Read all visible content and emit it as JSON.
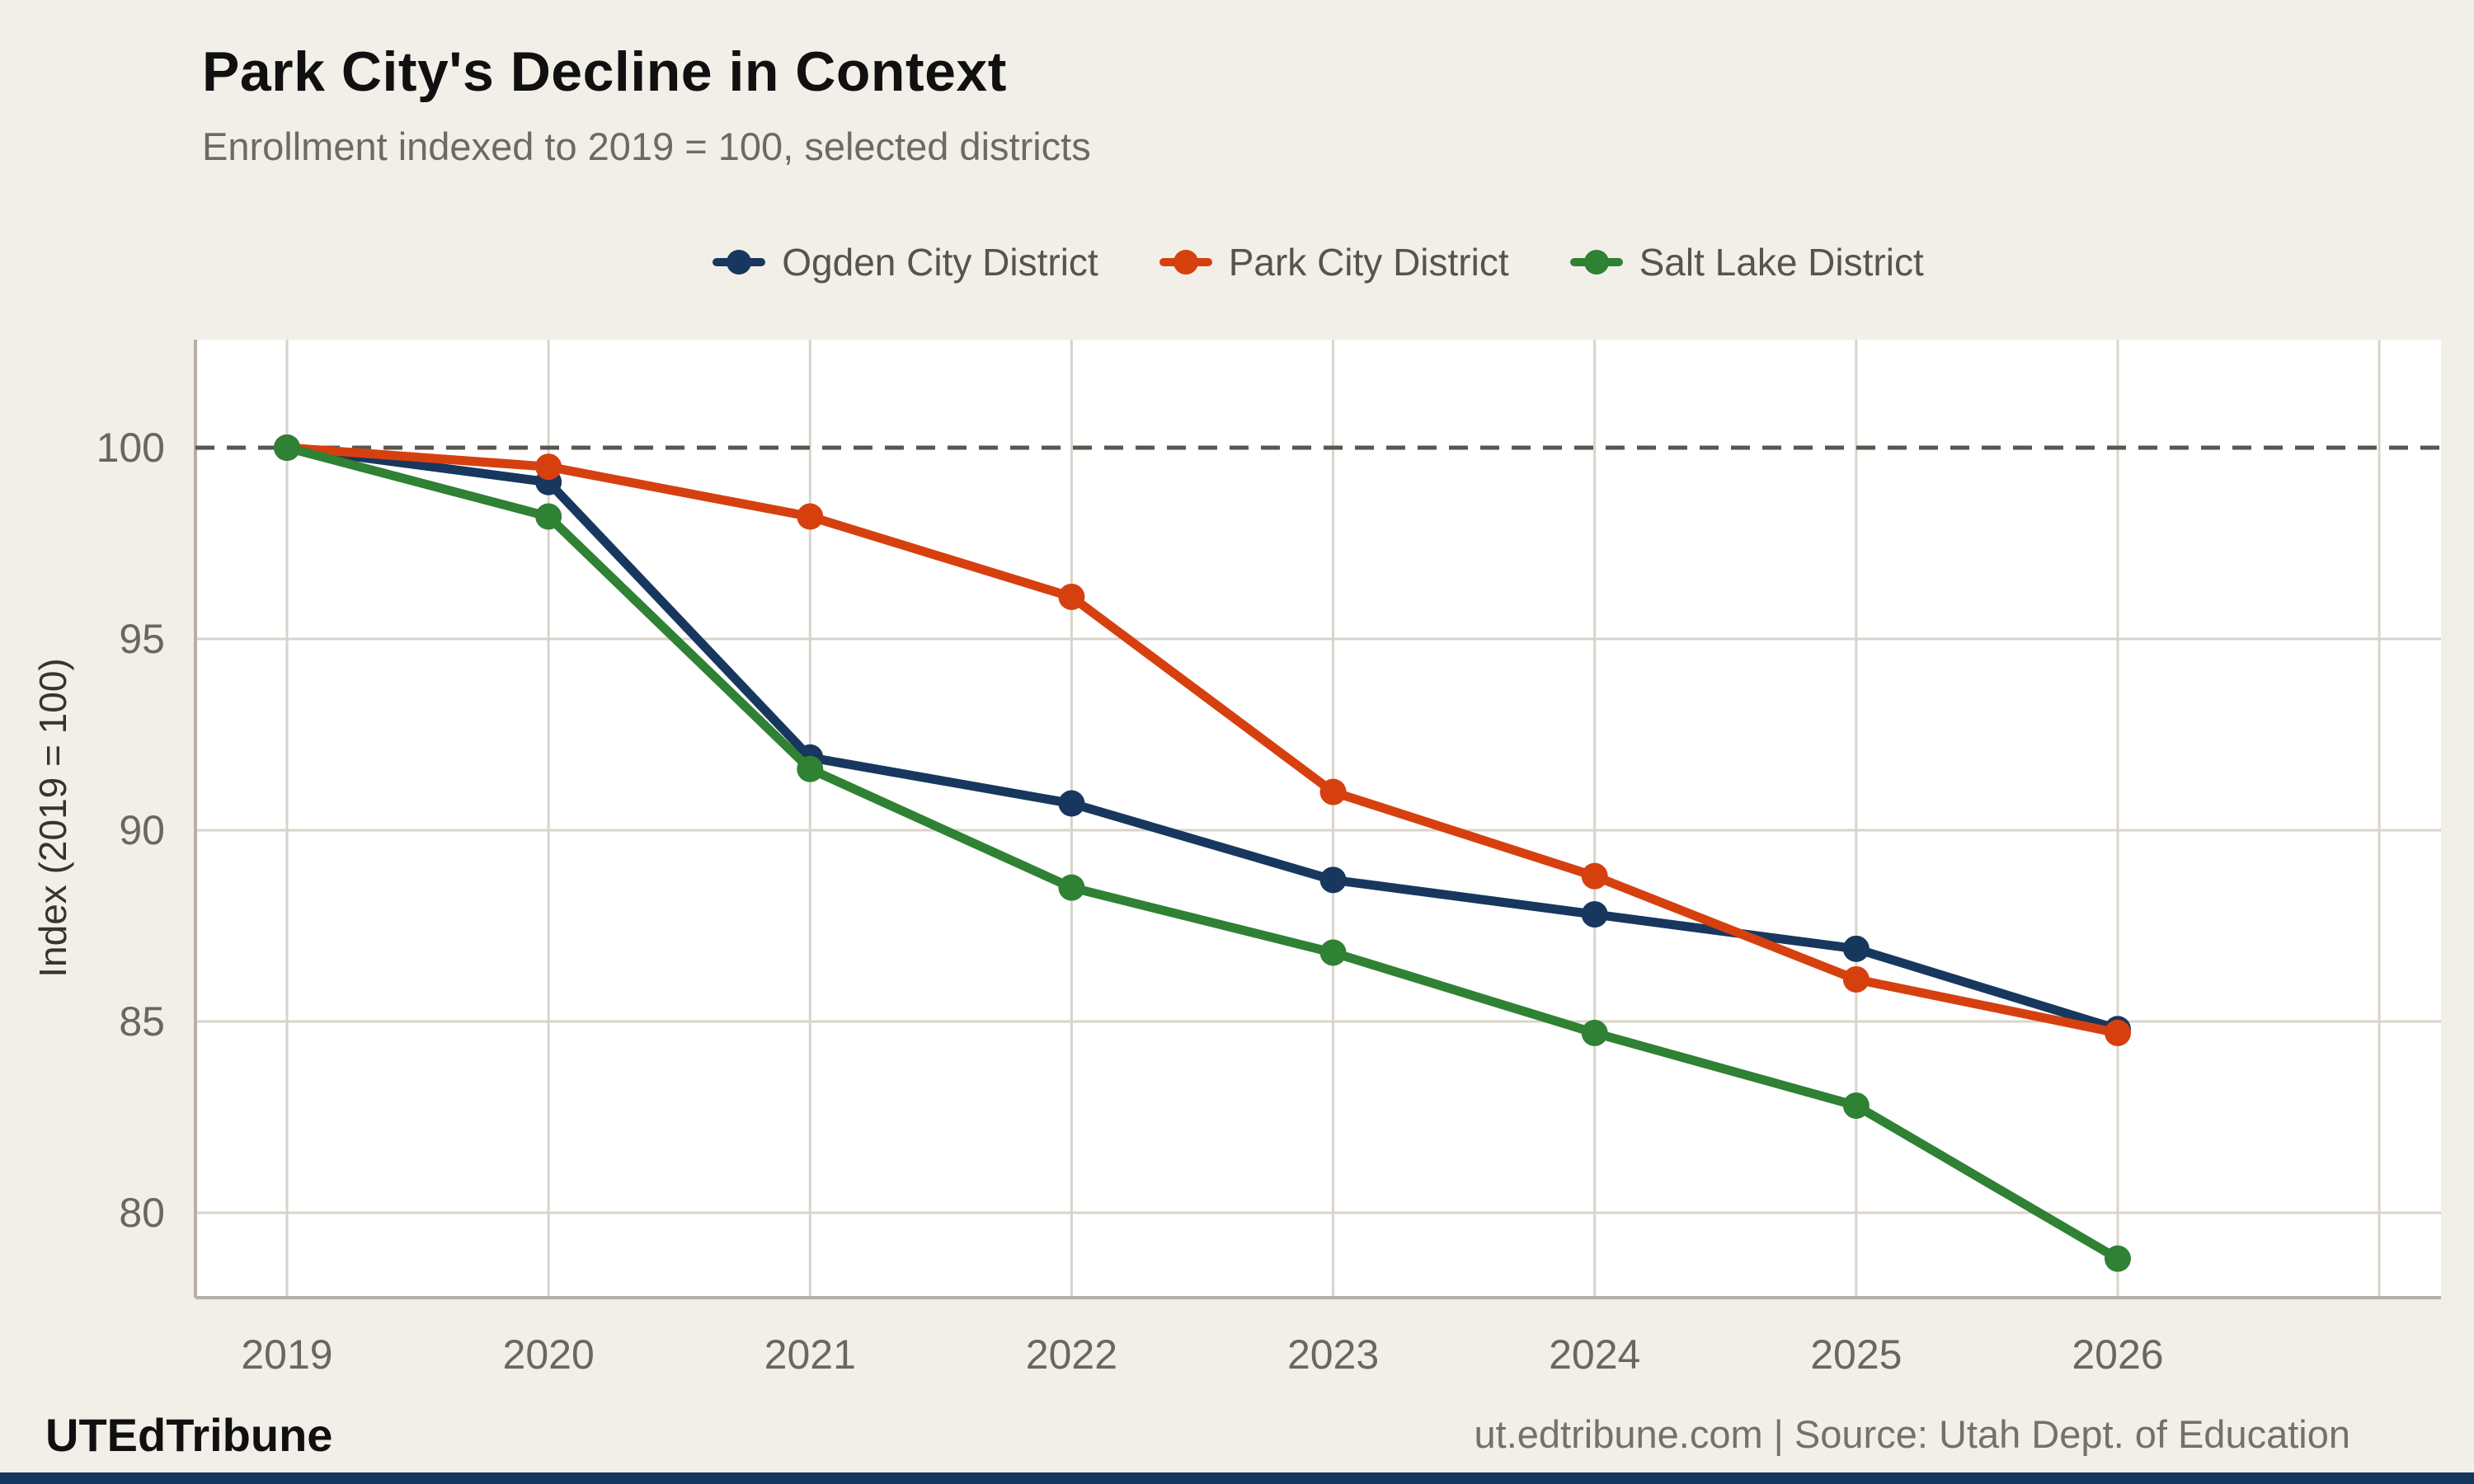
{
  "header": {
    "title": "Park City's Decline in Context",
    "subtitle": "Enrollment indexed to 2019 = 100, selected districts"
  },
  "footer": {
    "brand": "UTEdTribune",
    "source": "ut.edtribune.com | Source: Utah Dept. of Education"
  },
  "colors": {
    "page_background": "#f2efe8",
    "plot_background": "#ffffff",
    "gridline": "#d9d4ca",
    "axis_line": "#b5afa4",
    "reference_line": "#5a564f",
    "tick_text": "#6b665e",
    "title_text": "#101010",
    "subtitle_text": "#6e6a62",
    "legend_text": "#56544e",
    "footer_bar": "#17365d"
  },
  "chart_data": {
    "type": "line",
    "title": "Park City's Decline in Context",
    "subtitle": "Enrollment indexed to 2019 = 100, selected districts",
    "xlabel": "",
    "ylabel": "Index (2019 = 100)",
    "x": [
      2019,
      2020,
      2021,
      2022,
      2023,
      2024,
      2025,
      2026
    ],
    "series": [
      {
        "name": "Ogden City District",
        "color": "#17375e",
        "values": [
          100,
          99.1,
          91.9,
          90.7,
          88.7,
          87.8,
          86.9,
          84.8
        ]
      },
      {
        "name": "Park City District",
        "color": "#d6400f",
        "values": [
          100,
          99.5,
          98.2,
          96.1,
          91.0,
          88.8,
          86.1,
          84.7
        ]
      },
      {
        "name": "Salt Lake District",
        "color": "#2f8133",
        "values": [
          100,
          98.2,
          91.6,
          88.5,
          86.8,
          84.7,
          82.8,
          78.8
        ]
      }
    ],
    "y_ticks": [
      100,
      95,
      90,
      85,
      80
    ],
    "reference_line": 100,
    "ylim": [
      77.8,
      102.8
    ],
    "grid": true,
    "legend_position": "top"
  }
}
